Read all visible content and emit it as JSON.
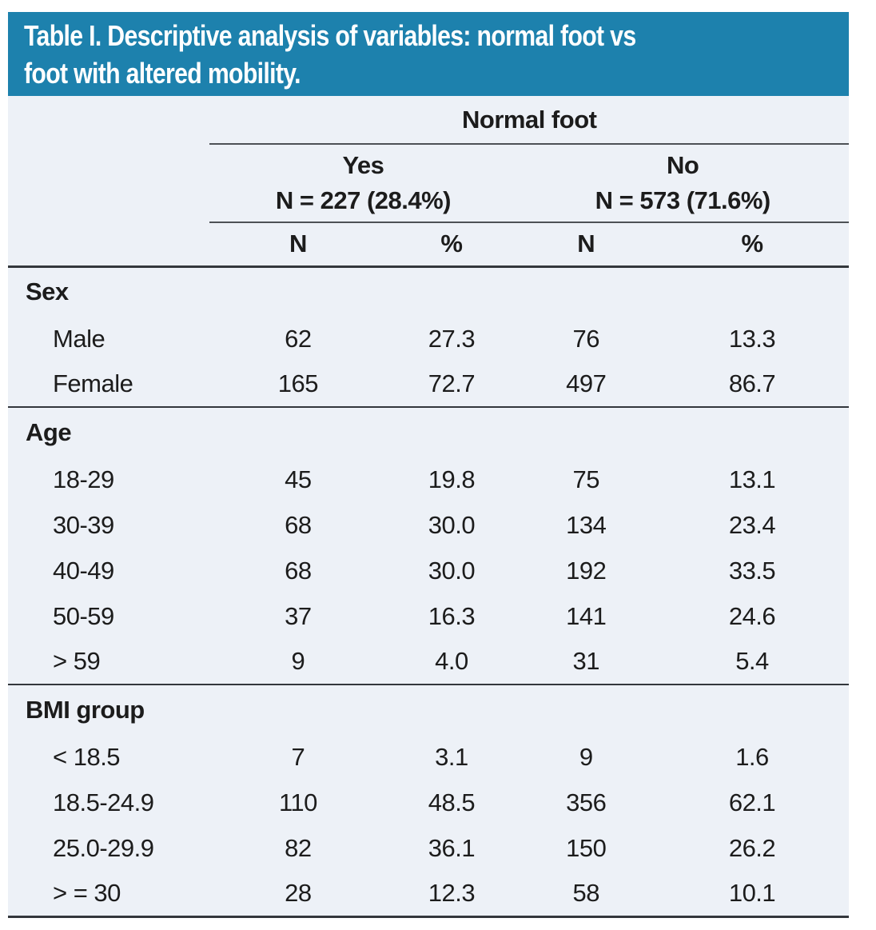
{
  "title_lines": [
    "Table I. Descriptive analysis of variables: normal foot vs",
    "foot with altered mobility."
  ],
  "colors": {
    "header_bg": "#1d81ad",
    "table_bg": "#edf1f7",
    "text": "#1c1c1c",
    "line_medium": "#4d5156",
    "line_dark": "#33373c"
  },
  "table": {
    "group_header": "Normal foot",
    "groups": [
      {
        "label": "Yes",
        "n_total": "N = 227 (28.4%)"
      },
      {
        "label": "No",
        "n_total": "N = 573 (71.6%)"
      }
    ],
    "subcolumns": [
      "N",
      "%",
      "N",
      "%"
    ],
    "sections": [
      {
        "title": "Sex",
        "rows": [
          {
            "label": "Male",
            "values": [
              "62",
              "27.3",
              "76",
              "13.3"
            ]
          },
          {
            "label": "Female",
            "values": [
              "165",
              "72.7",
              "497",
              "86.7"
            ]
          }
        ]
      },
      {
        "title": "Age",
        "rows": [
          {
            "label": "18-29",
            "values": [
              "45",
              "19.8",
              "75",
              "13.1"
            ]
          },
          {
            "label": "30-39",
            "values": [
              "68",
              "30.0",
              "134",
              "23.4"
            ]
          },
          {
            "label": "40-49",
            "values": [
              "68",
              "30.0",
              "192",
              "33.5"
            ]
          },
          {
            "label": "50-59",
            "values": [
              "37",
              "16.3",
              "141",
              "24.6"
            ]
          },
          {
            "label": "> 59",
            "values": [
              "9",
              "4.0",
              "31",
              "5.4"
            ]
          }
        ]
      },
      {
        "title": "BMI group",
        "rows": [
          {
            "label": "< 18.5",
            "values": [
              "7",
              "3.1",
              "9",
              "1.6"
            ]
          },
          {
            "label": "18.5-24.9",
            "values": [
              "110",
              "48.5",
              "356",
              "62.1"
            ]
          },
          {
            "label": "25.0-29.9",
            "values": [
              "82",
              "36.1",
              "150",
              "26.2"
            ]
          },
          {
            "label": "> = 30",
            "values": [
              "28",
              "12.3",
              "58",
              "10.1"
            ]
          }
        ]
      }
    ]
  }
}
